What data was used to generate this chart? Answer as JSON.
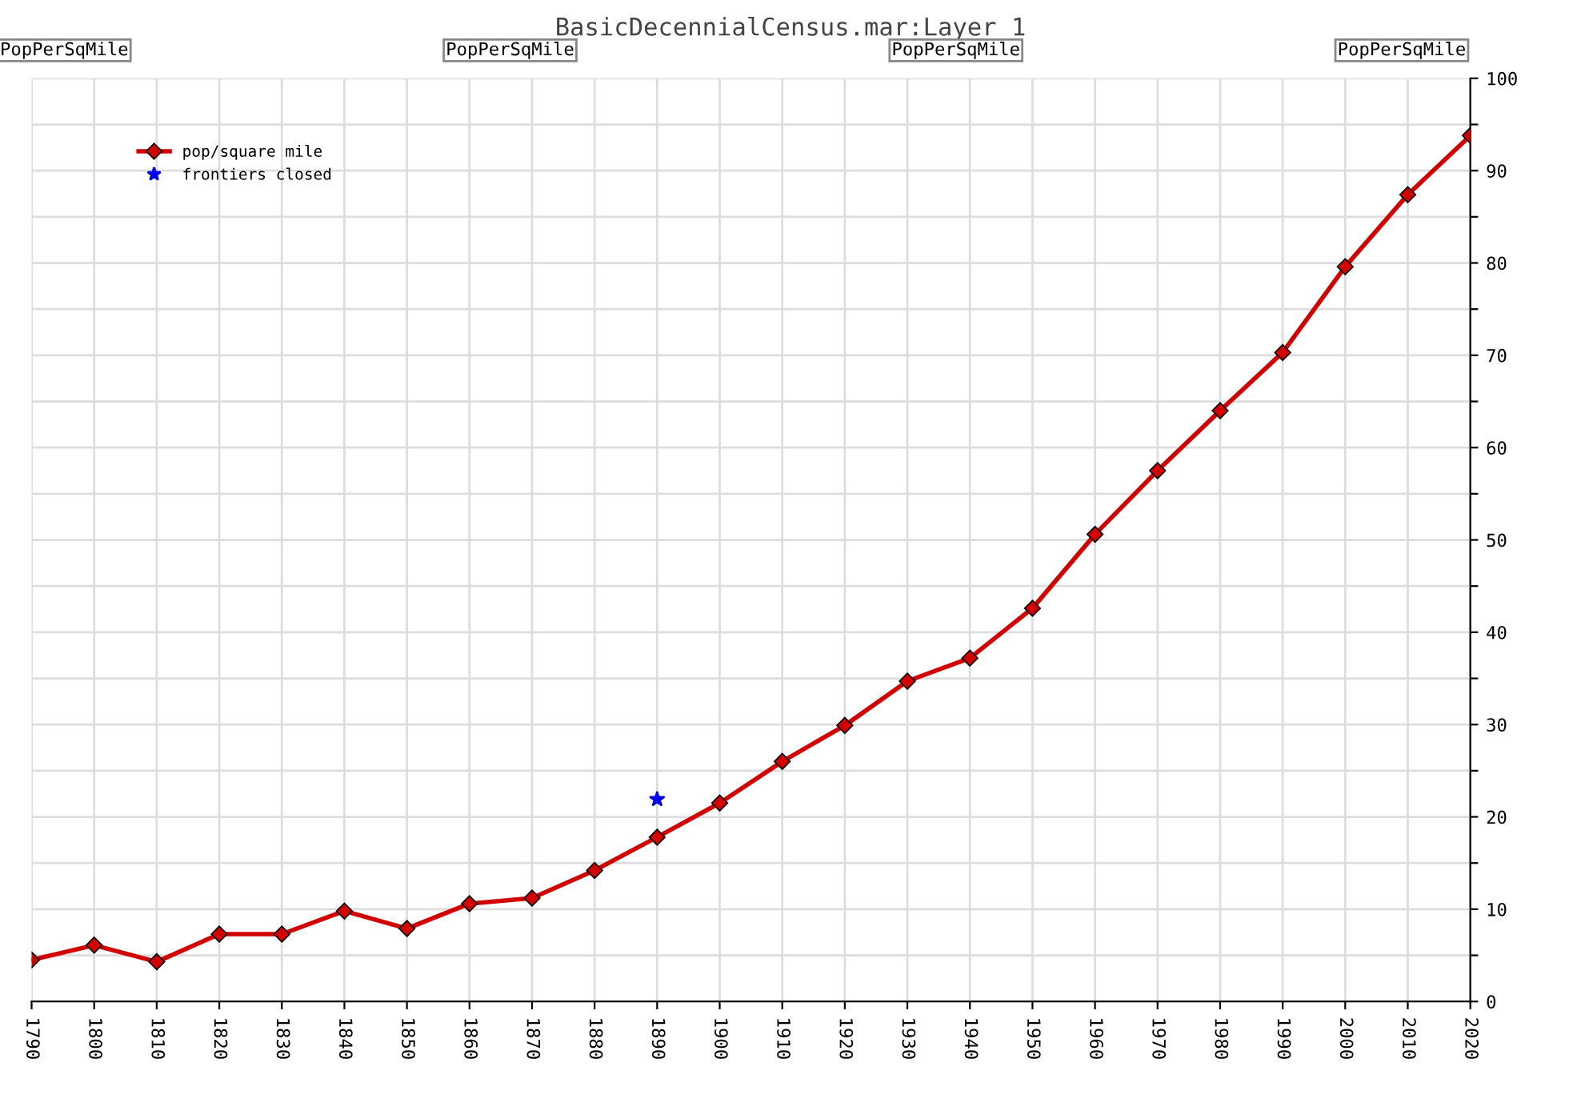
{
  "chart_data": {
    "type": "line",
    "title": "BasicDecennialCensus.mar:Layer 1",
    "annotations": [
      "PopPerSqMile",
      "PopPerSqMile",
      "PopPerSqMile",
      "PopPerSqMile"
    ],
    "x": [
      1790,
      1800,
      1810,
      1820,
      1830,
      1840,
      1850,
      1860,
      1870,
      1880,
      1890,
      1900,
      1910,
      1920,
      1930,
      1940,
      1950,
      1960,
      1970,
      1980,
      1990,
      2000,
      2010,
      2020
    ],
    "series": [
      {
        "name": "pop/square mile",
        "color": "#d40000",
        "marker": "diamond",
        "values": [
          4.5,
          6.1,
          4.3,
          7.3,
          7.3,
          9.8,
          7.9,
          10.6,
          11.2,
          14.2,
          17.8,
          21.5,
          26.0,
          29.9,
          34.7,
          37.2,
          42.6,
          50.6,
          57.5,
          64.0,
          70.3,
          79.6,
          87.4,
          93.8
        ]
      },
      {
        "name": "frontiers closed",
        "type": "scatter",
        "color": "#0000ee",
        "marker": "star",
        "x": [
          1890
        ],
        "values": [
          21.9
        ]
      }
    ],
    "xlim": [
      1790,
      2020
    ],
    "xticks": [
      1790,
      1800,
      1810,
      1820,
      1830,
      1840,
      1850,
      1860,
      1870,
      1880,
      1890,
      1900,
      1910,
      1920,
      1930,
      1940,
      1950,
      1960,
      1970,
      1980,
      1990,
      2000,
      2010,
      2020
    ],
    "ylim": [
      0,
      100
    ],
    "yticks": [
      0,
      {
        "value": 5,
        "label": null
      },
      10,
      {
        "value": 15,
        "label": null
      },
      20,
      {
        "value": 25,
        "label": null
      },
      30,
      {
        "value": 35,
        "label": null
      },
      40,
      {
        "value": 45,
        "label": null
      },
      50,
      {
        "value": 55,
        "label": null
      },
      60,
      {
        "value": 65,
        "label": null
      },
      70,
      {
        "value": 75,
        "label": null
      },
      80,
      {
        "value": 85,
        "label": null
      },
      90,
      {
        "value": 95,
        "label": null
      },
      100
    ],
    "grid": true,
    "legend": "top left",
    "line_style": "solid"
  }
}
